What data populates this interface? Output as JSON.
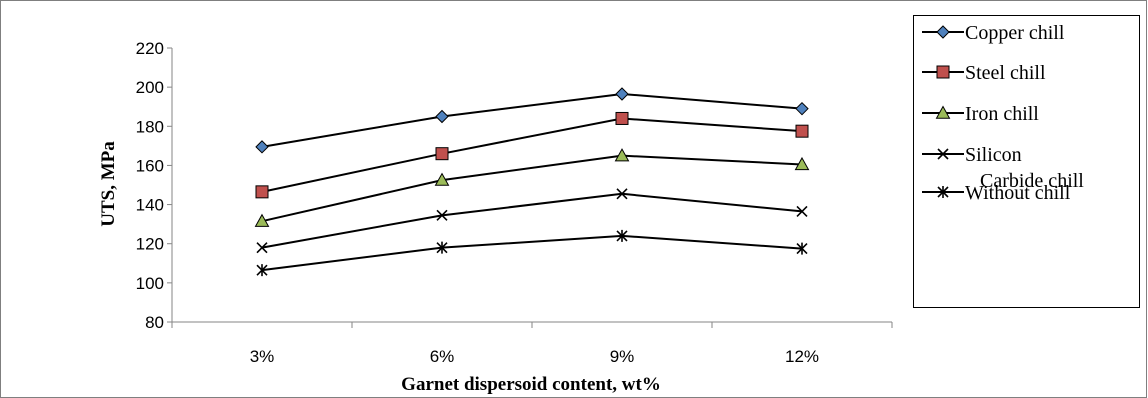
{
  "chart_data": {
    "type": "line",
    "title": "",
    "xlabel": "Garnet dispersoid content, wt%",
    "ylabel": "UTS, MPa",
    "categories": [
      "3%",
      "6%",
      "9%",
      "12%"
    ],
    "ylim": [
      80,
      220
    ],
    "yticks": [
      "80",
      "100",
      "120",
      "140",
      "160",
      "180",
      "200",
      "220"
    ],
    "grid": false,
    "legend_position": "right",
    "series": [
      {
        "name": "Copper chill",
        "marker": "diamond",
        "fill": "#4F81BD",
        "values": [
          169.5,
          185,
          196.5,
          189
        ]
      },
      {
        "name": "Steel chill",
        "marker": "square",
        "fill": "#C0504D",
        "values": [
          146.5,
          166,
          184,
          177.5
        ]
      },
      {
        "name": "Iron chill",
        "marker": "triangle",
        "fill": "#9BBB59",
        "values": [
          131.5,
          152.5,
          165,
          160.5
        ]
      },
      {
        "name": "Silicon Carbide chill",
        "marker": "x",
        "fill": "#000000",
        "values": [
          118,
          134.5,
          145.5,
          136.5
        ]
      },
      {
        "name": "Without chill",
        "marker": "star",
        "fill": "#000000",
        "values": [
          106.5,
          118,
          124,
          117.5
        ]
      }
    ]
  }
}
